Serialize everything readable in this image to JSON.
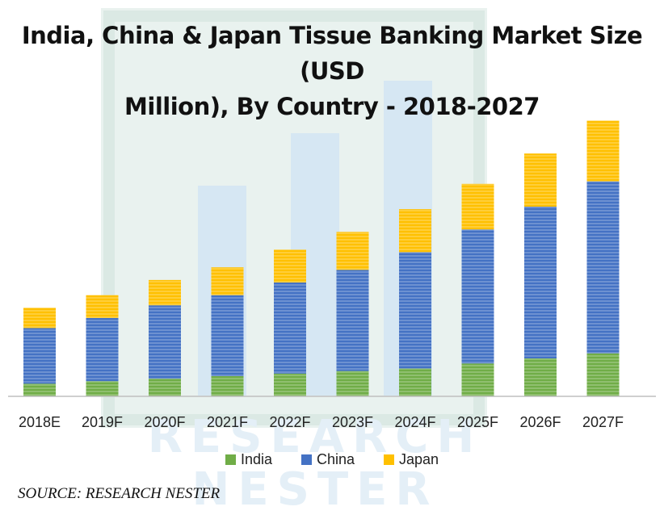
{
  "chart_data": {
    "type": "bar",
    "stacked": true,
    "title": "India, China & Japan Tissue Banking Market Size (USD Million), By Country - 2018-2027",
    "title_lines": [
      "India, China & Japan Tissue Banking Market Size (USD",
      "Million), By Country - 2018-2027"
    ],
    "categories": [
      "2018E",
      "2019F",
      "2020F",
      "2021F",
      "2022F",
      "2023F",
      "2024F",
      "2025F",
      "2026F",
      "2027F"
    ],
    "series": [
      {
        "name": "India",
        "color": "#70ad47",
        "values": [
          5,
          6,
          7,
          8,
          9,
          10,
          11,
          13,
          15,
          17
        ]
      },
      {
        "name": "China",
        "color": "#4472c4",
        "values": [
          22,
          25,
          29,
          32,
          36,
          40,
          46,
          53,
          60,
          68
        ]
      },
      {
        "name": "Japan",
        "color": "#ffc000",
        "values": [
          8,
          9,
          10,
          11,
          13,
          15,
          17,
          18,
          21,
          24
        ]
      }
    ],
    "legend_position": "bottom",
    "grid": false,
    "ylim": [
      0,
      120
    ]
  },
  "watermark": {
    "lines": [
      "RESEARCH",
      "NESTER"
    ]
  },
  "source": "SOURCE: RESEARCH NESTER"
}
